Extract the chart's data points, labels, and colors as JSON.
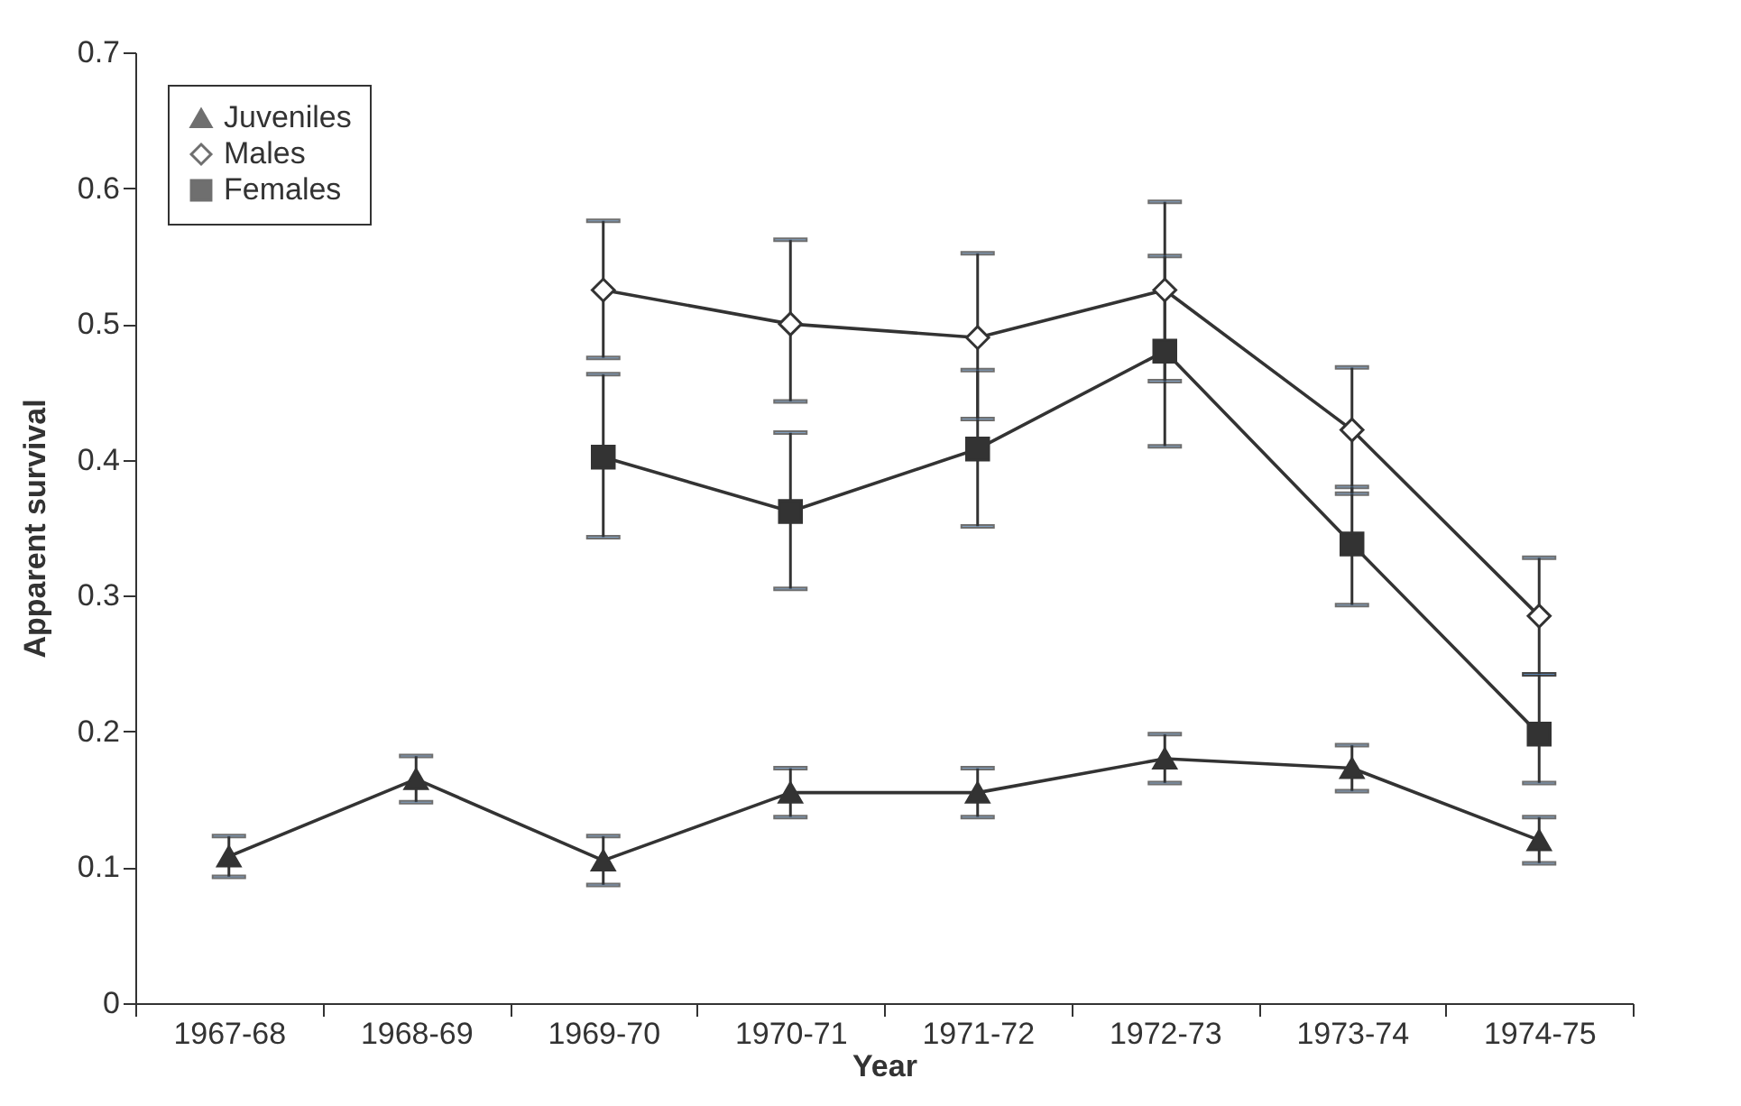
{
  "chart_data": {
    "type": "line",
    "xlabel": "Year",
    "ylabel": "Apparent survival",
    "categories": [
      "1967-68",
      "1968-69",
      "1969-70",
      "1970-71",
      "1971-72",
      "1972-73",
      "1973-74",
      "1974-75"
    ],
    "ylim": [
      0,
      0.7
    ],
    "yticks": [
      0,
      0.1,
      0.2,
      0.3,
      0.4,
      0.5,
      0.6,
      0.7
    ],
    "grid": false,
    "legend": "top left",
    "series": [
      {
        "name": "Juveniles",
        "color": "#333333",
        "marker": "triangle",
        "values": [
          0.108,
          0.165,
          0.105,
          0.155,
          0.155,
          0.18,
          0.173,
          0.12
        ],
        "errors": [
          0.015,
          0.017,
          0.018,
          0.018,
          0.018,
          0.018,
          0.017,
          0.017
        ]
      },
      {
        "name": "Males",
        "color": "#333333",
        "marker": "diamond",
        "values": [
          null,
          null,
          0.525,
          0.5,
          0.49,
          0.525,
          0.422,
          0.285
        ],
        "errors": [
          null,
          null,
          [
            0.475,
            0.576
          ],
          [
            0.443,
            0.562
          ],
          [
            0.43,
            0.552
          ],
          [
            0.458,
            0.59
          ],
          [
            0.375,
            0.468
          ],
          [
            0.242,
            0.328
          ]
        ]
      },
      {
        "name": "Females",
        "color": "#333333",
        "marker": "square",
        "values": [
          null,
          null,
          0.402,
          0.362,
          0.408,
          0.48,
          0.338,
          0.198
        ],
        "errors": [
          null,
          null,
          [
            0.343,
            0.463
          ],
          [
            0.305,
            0.42
          ],
          [
            0.351,
            0.466
          ],
          [
            0.41,
            0.55
          ],
          [
            0.293,
            0.38
          ],
          [
            0.162,
            0.242
          ]
        ]
      }
    ]
  }
}
